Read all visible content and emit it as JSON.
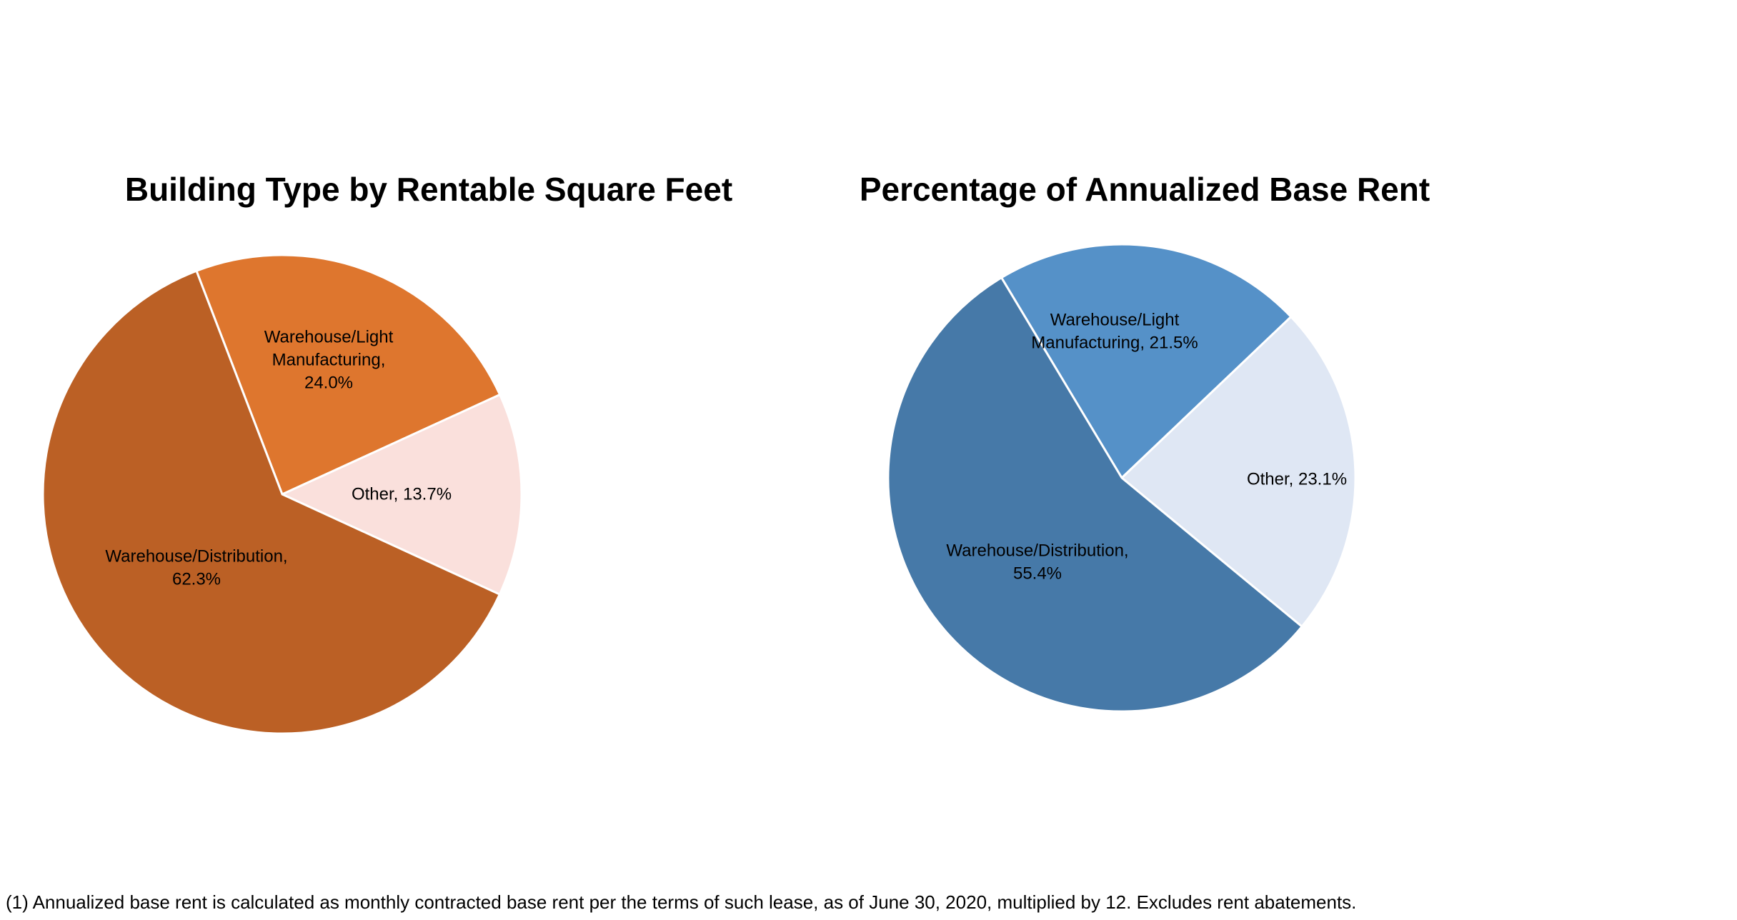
{
  "chart_data": [
    {
      "type": "pie",
      "title": "Building Type by Rentable Square Feet",
      "slices": [
        {
          "label": [
            "Warehouse/Light",
            "Manufacturing,",
            "24.0%"
          ],
          "value": 24.0,
          "color": "#DE762E"
        },
        {
          "label": [
            "Other, 13.7%"
          ],
          "value": 13.7,
          "color": "#FAE0DC"
        },
        {
          "label": [
            "Warehouse/Distribution,",
            "62.3%"
          ],
          "value": 62.3,
          "color": "#BB6025"
        }
      ]
    },
    {
      "type": "pie",
      "title": "Percentage of Annualized Base Rent",
      "slices": [
        {
          "label": [
            "Warehouse/Light",
            "Manufacturing,  21.5%"
          ],
          "value": 21.5,
          "color": "#5591C8"
        },
        {
          "label": [
            "Other, 23.1%"
          ],
          "value": 23.1,
          "color": "#DFE7F4"
        },
        {
          "label": [
            "Warehouse/Distribution,",
            "55.4%"
          ],
          "value": 55.4,
          "color": "#4679A8"
        }
      ]
    }
  ],
  "footnotes": {
    "note1": "(1) Annualized base rent is calculated as monthly contracted base rent per the terms of such lease, as of June 30, 2020, multiplied by 12. Excludes rent abatements."
  }
}
